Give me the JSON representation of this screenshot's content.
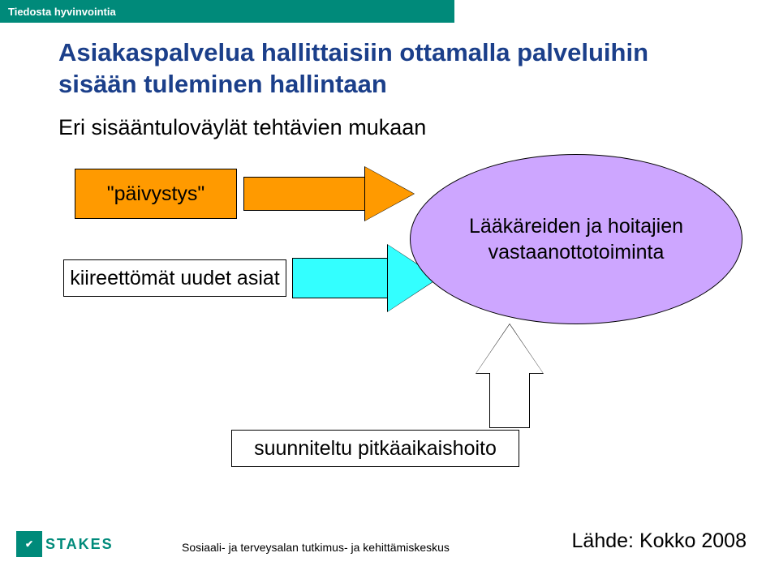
{
  "colors": {
    "teal": "#008a7a",
    "title": "#1b3f8a",
    "box1_fill": "#ff9a00",
    "arrow1_fill": "#ff9a00",
    "arrow2_fill": "#33ffff",
    "arrow3_fill": "#ffffff",
    "ellipse_fill": "#cda6ff",
    "box_border": "#000000",
    "text": "#000000",
    "logo_text": "#008a7a"
  },
  "header": {
    "text": "Tiedosta hyvinvointia"
  },
  "title": "Asiakaspalvelua hallittaisiin ottamalla palveluihin sisään tuleminen hallintaan",
  "subtitle": "Eri sisääntuloväylät tehtävien mukaan",
  "inputs": {
    "paivystys": "\"päivystys\"",
    "kiireettomat": "kiireettömät uudet asiat",
    "pitkaaikais": "suunniteltu pitkäaikaishoito"
  },
  "ellipse": {
    "text": "Lääkäreiden ja hoitajien vastaanottotoiminta"
  },
  "footer": {
    "logo_text": "STAKES",
    "org": "Sosiaali- ja terveysalan tutkimus- ja kehittämiskeskus",
    "source": "Lähde: Kokko 2008"
  }
}
